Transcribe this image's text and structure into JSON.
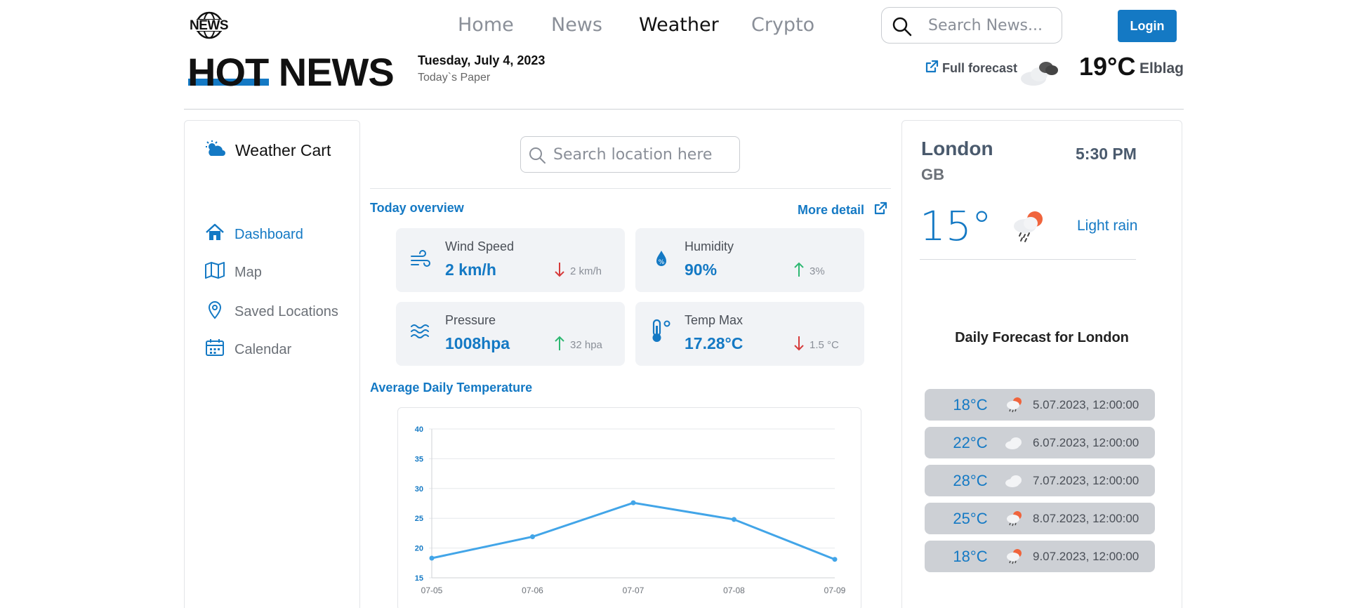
{
  "header": {
    "logo_text": "NEWS",
    "nav": [
      "Home",
      "News",
      "Weather",
      "Crypto"
    ],
    "active_nav": "Weather",
    "search_placeholder": "Search News...",
    "login_label": "Login",
    "brand": "HOT NEWS",
    "date": "Tuesday, July 4, 2023",
    "paper": "Today`s Paper",
    "full_forecast": "Full forecast",
    "temp": "19°C",
    "city": "Elblag"
  },
  "sidebar": {
    "title": "Weather Cart",
    "items": [
      {
        "label": "Dashboard",
        "icon": "home-icon",
        "active": true
      },
      {
        "label": "Map",
        "icon": "map-icon",
        "active": false
      },
      {
        "label": "Saved Locations",
        "icon": "location-pin-icon",
        "active": false
      },
      {
        "label": "Calendar",
        "icon": "calendar-icon",
        "active": false
      }
    ]
  },
  "main": {
    "search_placeholder": "Search location here",
    "overview_title": "Today overview",
    "more_detail": "More detail",
    "cards": [
      {
        "label": "Wind Speed",
        "value": "2 km/h",
        "delta": "2 km/h",
        "trend": "down",
        "icon": "wind-icon"
      },
      {
        "label": "Humidity",
        "value": "90%",
        "delta": "3%",
        "trend": "up",
        "icon": "humidity-icon"
      },
      {
        "label": "Pressure",
        "value": "1008hpa",
        "delta": "32 hpa",
        "trend": "up",
        "icon": "pressure-icon"
      },
      {
        "label": "Temp Max",
        "value": "17.28°C",
        "delta": "1.5 °C",
        "trend": "down",
        "icon": "thermometer-icon"
      }
    ],
    "chart_title": "Average Daily Temperature"
  },
  "chart_data": {
    "type": "line",
    "title": "",
    "categories": [
      "07-05",
      "07-06",
      "07-07",
      "07-08",
      "07-09"
    ],
    "series": [
      {
        "values": [
          18.3,
          21.9,
          27.6,
          24.8,
          18.1
        ]
      }
    ],
    "ylim": [
      15,
      40
    ],
    "yticks": [
      15,
      20,
      25,
      30,
      35,
      40
    ],
    "grid": true,
    "color": "#42a5e8"
  },
  "weather": {
    "city": "London",
    "country": "GB",
    "time": "5:30 PM",
    "temp": "15°",
    "condition": "Light rain",
    "daily_title": "Daily Forecast for London",
    "forecast": [
      {
        "temp": "18°C",
        "date": "5.07.2023, 12:00:00",
        "icon": "rain-sun-icon"
      },
      {
        "temp": "22°C",
        "date": "6.07.2023, 12:00:00",
        "icon": "cloud-icon"
      },
      {
        "temp": "28°C",
        "date": "7.07.2023, 12:00:00",
        "icon": "cloud-icon"
      },
      {
        "temp": "25°C",
        "date": "8.07.2023, 12:00:00",
        "icon": "rain-sun-icon"
      },
      {
        "temp": "18°C",
        "date": "9.07.2023, 12:00:00",
        "icon": "rain-sun-icon"
      }
    ]
  },
  "colors": {
    "accent": "#1479c4",
    "up": "#2eb872",
    "down": "#d63a3a",
    "card_bg": "#f1f3f6"
  }
}
